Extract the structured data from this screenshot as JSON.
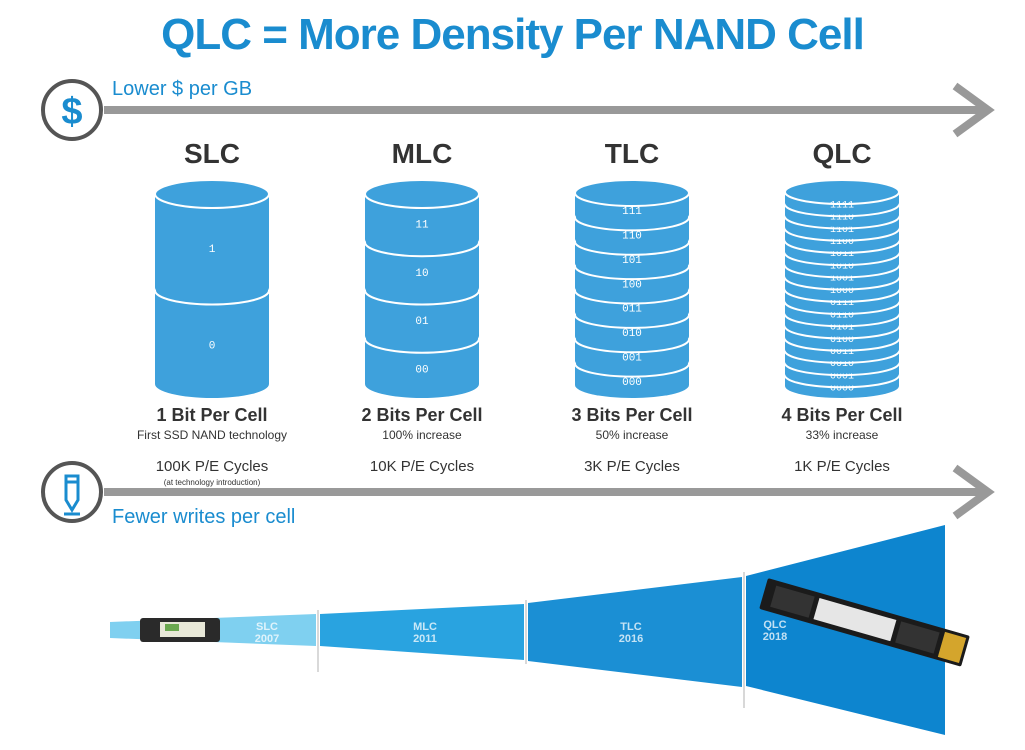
{
  "title": "QLC = More Density Per NAND Cell",
  "top_axis_label": "Lower $ per GB",
  "bottom_axis_label": "Fewer writes per cell",
  "icons": {
    "top": "dollar-icon",
    "bottom": "pencil-icon"
  },
  "colors": {
    "accent": "#1a8ccf",
    "cell_fill": "#3ea1dc",
    "arrow": "#999999"
  },
  "columns": [
    {
      "name": "SLC",
      "bits_label": "1 Bit Per Cell",
      "desc": "First SSD NAND technology",
      "pe": "100K P/E Cycles",
      "pe_note": "(at technology introduction)",
      "levels": [
        "1",
        "0"
      ]
    },
    {
      "name": "MLC",
      "bits_label": "2 Bits Per Cell",
      "desc": "100% increase",
      "pe": "10K P/E Cycles",
      "levels": [
        "11",
        "10",
        "01",
        "00"
      ]
    },
    {
      "name": "TLC",
      "bits_label": "3 Bits Per Cell",
      "desc": "50% increase",
      "pe": "3K P/E Cycles",
      "levels": [
        "111",
        "110",
        "101",
        "100",
        "011",
        "010",
        "001",
        "000"
      ]
    },
    {
      "name": "QLC",
      "bits_label": "4 Bits Per Cell",
      "desc": "33% increase",
      "pe": "1K P/E Cycles",
      "levels": [
        "1111",
        "1110",
        "1101",
        "1100",
        "1011",
        "1010",
        "1001",
        "1000",
        "0111",
        "0110",
        "0101",
        "0100",
        "0011",
        "0010",
        "0001",
        "0000"
      ]
    }
  ],
  "timeline": [
    {
      "name": "SLC",
      "year": "2007"
    },
    {
      "name": "MLC",
      "year": "2011"
    },
    {
      "name": "TLC",
      "year": "2016"
    },
    {
      "name": "QLC",
      "year": "2018"
    }
  ]
}
